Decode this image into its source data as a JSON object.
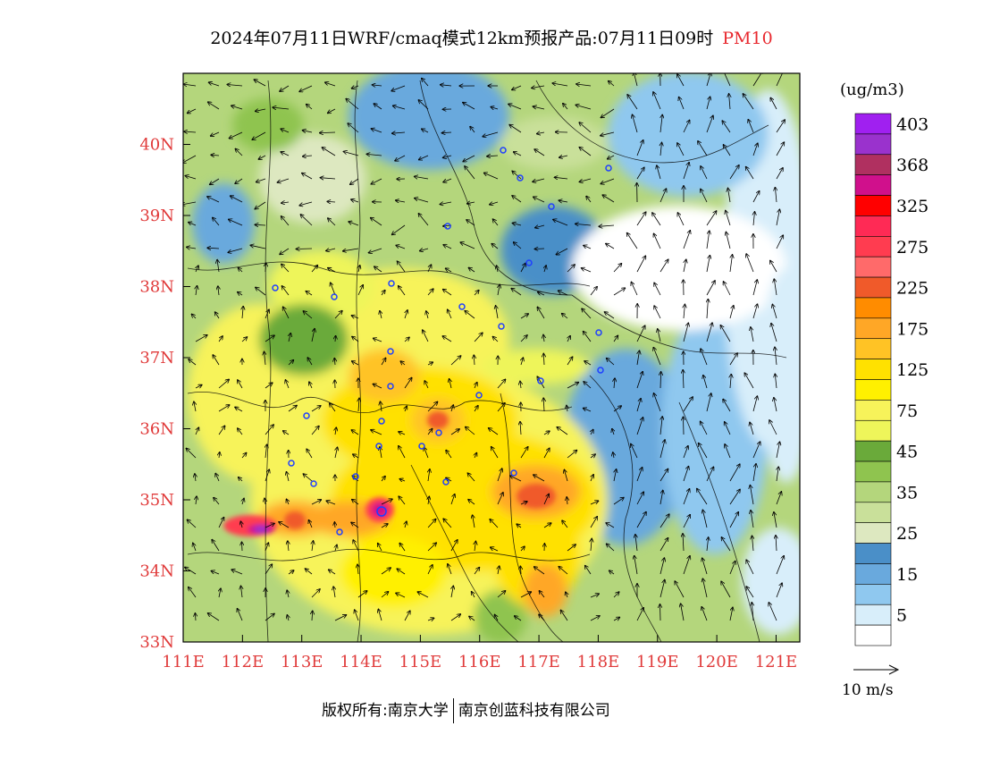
{
  "title": {
    "text": "2024年07月11日WRF/cmaq模式12km预报产品:07月11日09时",
    "variable": "PM10"
  },
  "map": {
    "lon_range": [
      111,
      121.4
    ],
    "lat_range": [
      33,
      41
    ],
    "lat_labels": [
      "40N",
      "39N",
      "38N",
      "37N",
      "36N",
      "35N",
      "34N",
      "33N"
    ],
    "lon_labels": [
      "111E",
      "112E",
      "113E",
      "114E",
      "115E",
      "116E",
      "117E",
      "118E",
      "119E",
      "120E",
      "121E"
    ],
    "colors": {
      "land_base": "#b4d67c",
      "sea": "#ffffff",
      "axis_label": "#e03a3a"
    }
  },
  "legend": {
    "units": "(ug/m3)",
    "entries": [
      {
        "label": "403",
        "color": "#a020f0"
      },
      {
        "label": "",
        "color": "#9a32cd"
      },
      {
        "label": "368",
        "color": "#b03060"
      },
      {
        "label": "",
        "color": "#d0108c"
      },
      {
        "label": "325",
        "color": "#ff0000"
      },
      {
        "label": "",
        "color": "#ff2a55"
      },
      {
        "label": "275",
        "color": "#ff3c50"
      },
      {
        "label": "",
        "color": "#ff6a6a"
      },
      {
        "label": "225",
        "color": "#f05a2a"
      },
      {
        "label": "",
        "color": "#ff8c00"
      },
      {
        "label": "175",
        "color": "#ffa726"
      },
      {
        "label": "",
        "color": "#ffc325"
      },
      {
        "label": "125",
        "color": "#ffe100"
      },
      {
        "label": "",
        "color": "#fff000"
      },
      {
        "label": "75",
        "color": "#f7f35a"
      },
      {
        "label": "",
        "color": "#eef55a"
      },
      {
        "label": "45",
        "color": "#6aaa3a"
      },
      {
        "label": "",
        "color": "#8fc44f"
      },
      {
        "label": "35",
        "color": "#b4d67c"
      },
      {
        "label": "",
        "color": "#c9e09a"
      },
      {
        "label": "25",
        "color": "#dde8c0"
      },
      {
        "label": "",
        "color": "#4a8fc8"
      },
      {
        "label": "15",
        "color": "#69a9dd"
      },
      {
        "label": "",
        "color": "#8fc8ef"
      },
      {
        "label": "5",
        "color": "#d8eefa"
      },
      {
        "label": "",
        "color": "#ffffff"
      }
    ]
  },
  "wind_reference": "10 m/s",
  "copyright": {
    "prefix": "版权所有:南京大学",
    "company": "南京创蓝科技有限公司"
  }
}
